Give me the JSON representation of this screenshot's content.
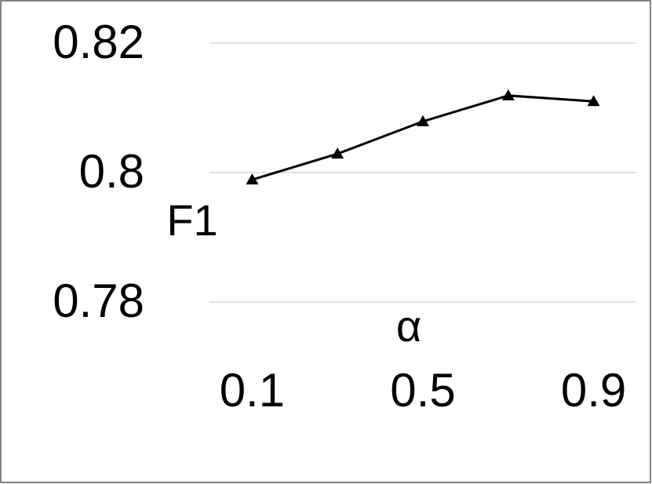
{
  "chart_data": {
    "type": "line",
    "x_label": "α",
    "y_label": "F1",
    "categories": [
      "0.1",
      null,
      "0.5",
      null,
      "0.9"
    ],
    "values": [
      0.7989,
      0.8029,
      0.8079,
      0.8119,
      0.811
    ],
    "color": "#000000",
    "marker": "triangle",
    "ylim": [
      0.78,
      0.82
    ],
    "yticks": [
      0.78,
      0.8,
      0.82
    ],
    "grid": true
  }
}
